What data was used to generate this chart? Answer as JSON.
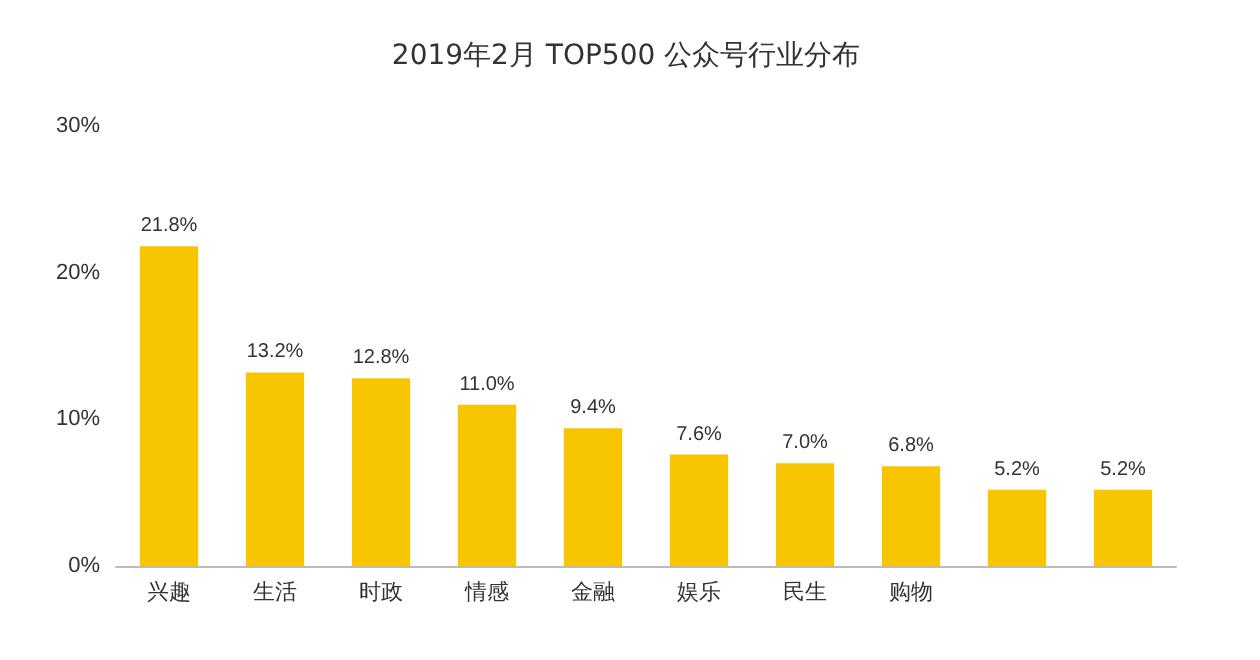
{
  "chart_data": {
    "type": "bar",
    "title": "2019年2月 TOP500 公众号行业分布",
    "categories": [
      "兴趣",
      "生活",
      "时政",
      "情感",
      "金融",
      "娱乐",
      "民生",
      "购物",
      null,
      null
    ],
    "values": [
      21.8,
      13.2,
      12.8,
      11.0,
      9.4,
      7.6,
      7.0,
      6.8,
      5.2,
      5.2
    ],
    "value_labels": [
      "21.8%",
      "13.2%",
      "12.8%",
      "11.0%",
      "9.4%",
      "7.6%",
      "7.0%",
      "6.8%",
      "5.2%",
      "5.2%"
    ],
    "color": "#f7c600",
    "ylim": [
      0,
      30
    ],
    "yticks": [
      {
        "value": 0,
        "label": "0%"
      },
      {
        "value": 10,
        "label": "10%"
      },
      {
        "value": 20,
        "label": "20%"
      },
      {
        "value": 30,
        "label": "30%"
      }
    ],
    "grid": false
  }
}
